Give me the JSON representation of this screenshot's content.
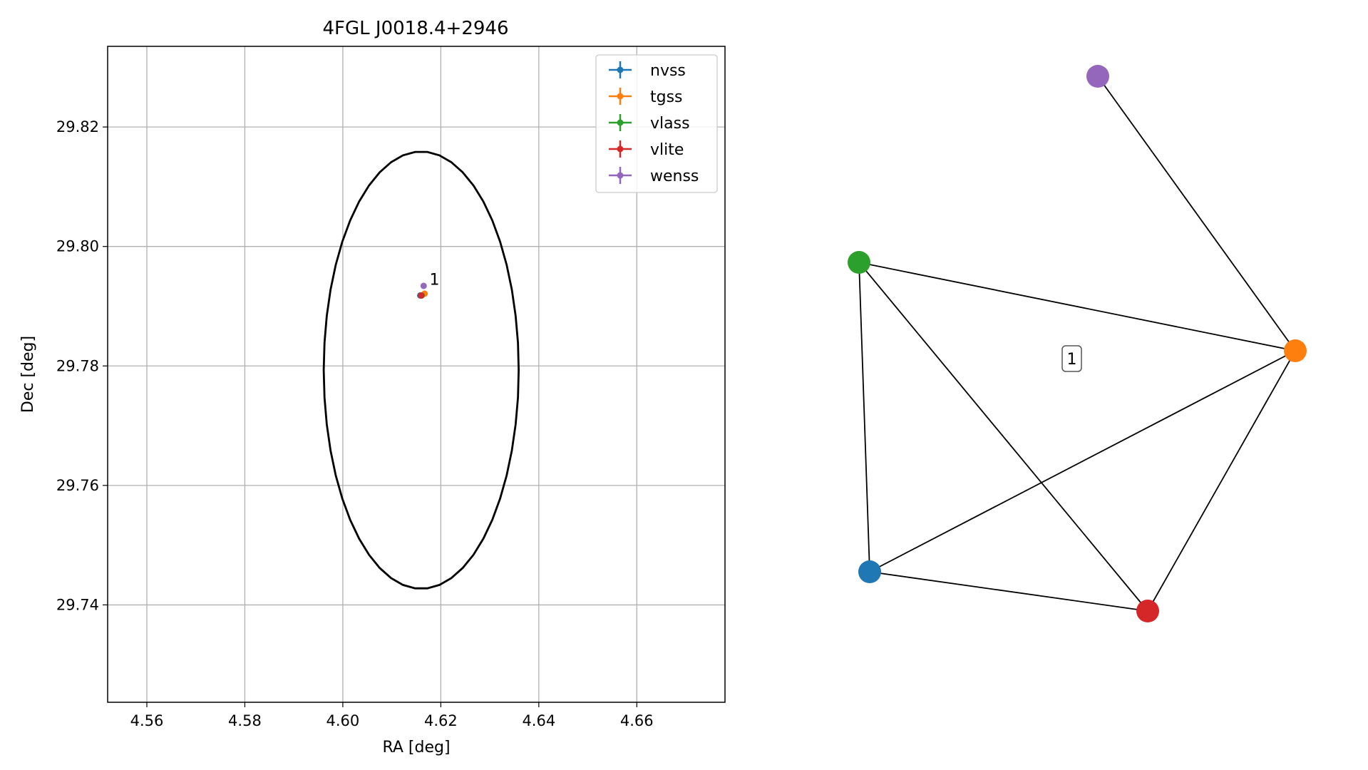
{
  "chart_data": [
    {
      "type": "scatter",
      "title": "4FGL J0018.4+2946",
      "xlabel": "RA [deg]",
      "ylabel": "Dec [deg]",
      "xlim": [
        4.552,
        4.678
      ],
      "ylim": [
        29.7237,
        29.8335
      ],
      "xticks": [
        4.56,
        4.58,
        4.6,
        4.62,
        4.64,
        4.66
      ],
      "xtick_labels": [
        "4.56",
        "4.58",
        "4.60",
        "4.62",
        "4.64",
        "4.66"
      ],
      "yticks": [
        29.74,
        29.76,
        29.78,
        29.8,
        29.82
      ],
      "ytick_labels": [
        "29.74",
        "29.76",
        "29.78",
        "29.80",
        "29.82"
      ],
      "grid": true,
      "legend_position": "top-right",
      "series": [
        {
          "name": "nvss",
          "color": "#1f77b4",
          "x": [
            4.6158
          ],
          "y": [
            29.7918
          ]
        },
        {
          "name": "tgss",
          "color": "#ff7f0e",
          "x": [
            4.6167
          ],
          "y": [
            29.7921
          ]
        },
        {
          "name": "vlass",
          "color": "#2ca02c",
          "x": [
            4.6161
          ],
          "y": [
            29.7918
          ]
        },
        {
          "name": "vlite",
          "color": "#d62728",
          "x": [
            4.616
          ],
          "y": [
            29.7918
          ]
        },
        {
          "name": "wenss",
          "color": "#9467bd",
          "x": [
            4.6165
          ],
          "y": [
            29.7934
          ]
        }
      ],
      "annotations": [
        {
          "text": "1",
          "x": 4.6177,
          "y": 29.7936
        }
      ],
      "ellipse": {
        "center": [
          4.616,
          29.7793
        ],
        "semi_axis_x": 0.0199,
        "semi_axis_y": 0.0366,
        "color": "#000000"
      }
    },
    {
      "type": "graph",
      "nodes": [
        {
          "id": "nvss",
          "color": "#1f77b4"
        },
        {
          "id": "tgss",
          "color": "#ff7f0e"
        },
        {
          "id": "vlass",
          "color": "#2ca02c"
        },
        {
          "id": "vlite",
          "color": "#d62728"
        },
        {
          "id": "wenss",
          "color": "#9467bd"
        }
      ],
      "edges": [
        [
          "wenss",
          "tgss"
        ],
        [
          "vlass",
          "tgss"
        ],
        [
          "vlass",
          "nvss"
        ],
        [
          "vlass",
          "vlite"
        ],
        [
          "nvss",
          "tgss"
        ],
        [
          "nvss",
          "vlite"
        ],
        [
          "vlite",
          "tgss"
        ]
      ],
      "cluster_label": "1"
    }
  ]
}
